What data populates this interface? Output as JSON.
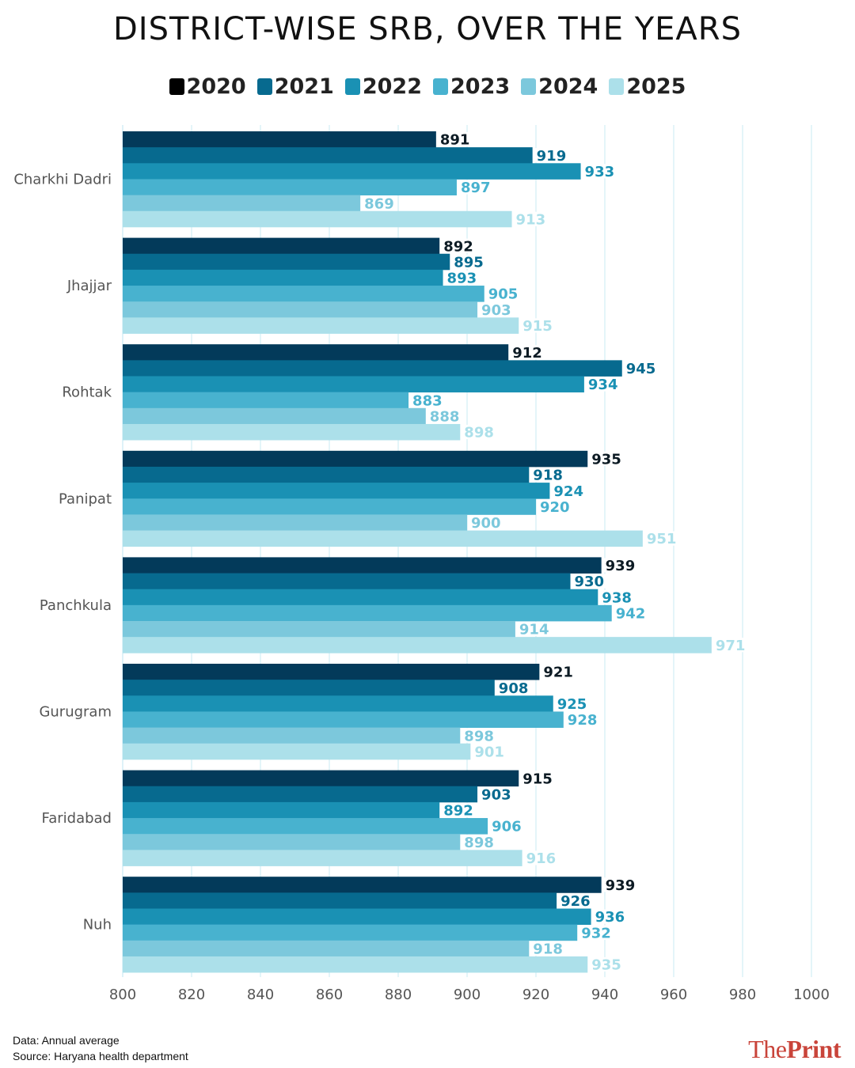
{
  "title": "DISTRICT-WISE SRB, OVER THE YEARS",
  "footer": {
    "data_note": "Data: Annual average",
    "source_note": "Source: Haryana health department"
  },
  "logo": {
    "part1": "The",
    "part2": "Print"
  },
  "colors": {
    "2020": "#033a5a",
    "2021": "#076a8f",
    "2022": "#1a91b4",
    "2023": "#48b2cf",
    "2024": "#7cc8dc",
    "2025": "#ace0ea",
    "grid": "#d3eef5",
    "axis_text": "#555555"
  },
  "chart_data": {
    "type": "bar",
    "orientation": "horizontal",
    "title": "DISTRICT-WISE SRB, OVER THE YEARS",
    "categories": [
      "Charkhi Dadri",
      "Jhajjar",
      "Rohtak",
      "Panipat",
      "Panchkula",
      "Gurugram",
      "Faridabad",
      "Nuh"
    ],
    "series": [
      {
        "name": "2020",
        "values": [
          891,
          892,
          912,
          935,
          939,
          921,
          915,
          939
        ]
      },
      {
        "name": "2021",
        "values": [
          919,
          895,
          945,
          918,
          930,
          908,
          903,
          926
        ]
      },
      {
        "name": "2022",
        "values": [
          933,
          893,
          934,
          924,
          938,
          925,
          892,
          936
        ]
      },
      {
        "name": "2023",
        "values": [
          897,
          905,
          883,
          920,
          942,
          928,
          906,
          932
        ]
      },
      {
        "name": "2024",
        "values": [
          869,
          903,
          888,
          900,
          914,
          898,
          898,
          918
        ]
      },
      {
        "name": "2025",
        "values": [
          913,
          915,
          898,
          951,
          971,
          901,
          916,
          935
        ]
      }
    ],
    "xlim": [
      800,
      1000
    ],
    "xticks": [
      800,
      820,
      840,
      860,
      880,
      900,
      920,
      940,
      960,
      980,
      1000
    ],
    "grid": true,
    "legend": "top-center",
    "data_labels": true
  }
}
